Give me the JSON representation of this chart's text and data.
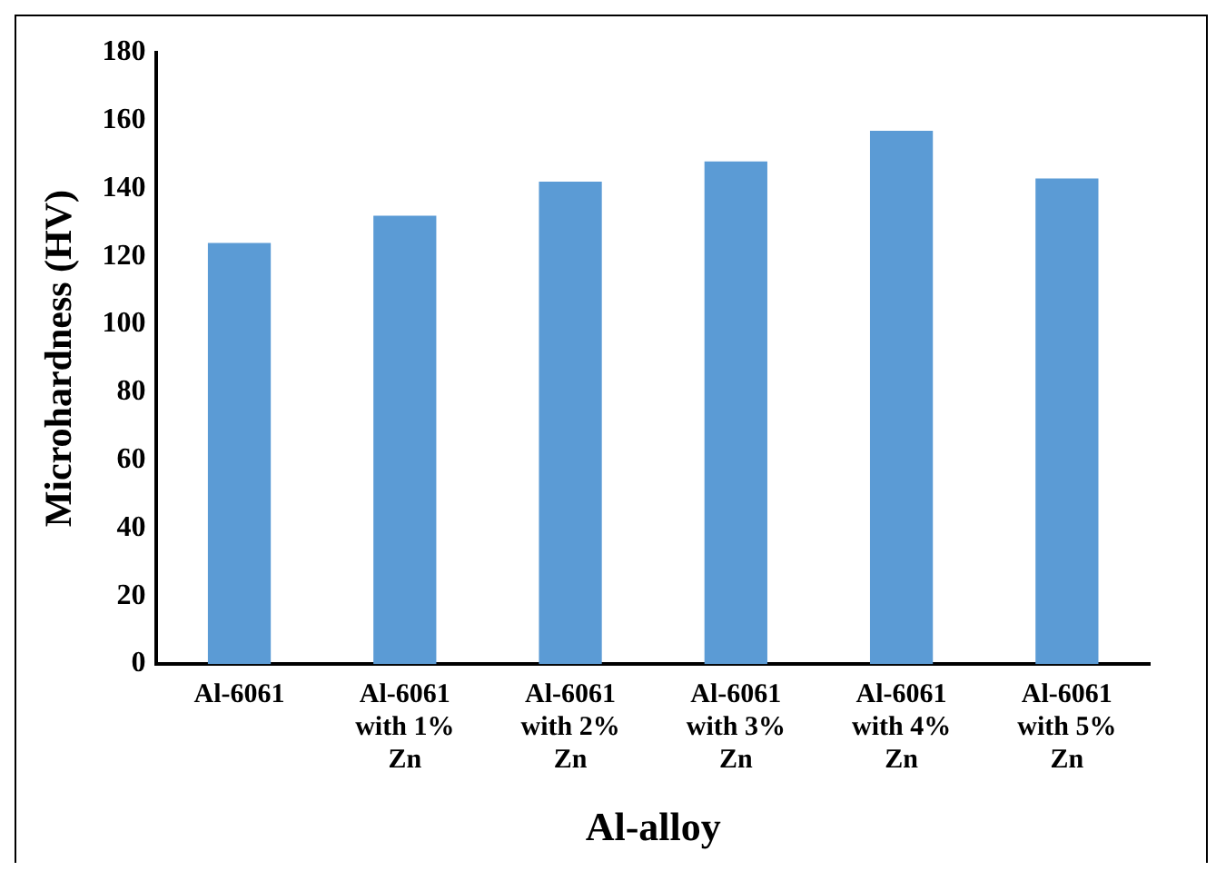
{
  "chart_data": {
    "type": "bar",
    "xlabel": "Al-alloy",
    "ylabel": "Microhardness (HV)",
    "categories": [
      "Al-6061",
      "Al-6061 with 1% Zn",
      "Al-6061 with 2% Zn",
      "Al-6061 with 3% Zn",
      "Al-6061 with 4% Zn",
      "Al-6061 with 5% Zn"
    ],
    "values": [
      124,
      132,
      142,
      148,
      157,
      143
    ],
    "color": "#5b9bd5",
    "ylim": [
      0,
      180
    ],
    "yticks": [
      0,
      20,
      40,
      60,
      80,
      100,
      120,
      140,
      160,
      180
    ],
    "grid": false,
    "legend": false
  }
}
